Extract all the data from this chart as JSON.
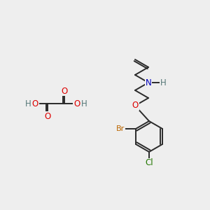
{
  "bg_color": "#eeeeee",
  "bond_color": "#2a2a2a",
  "bond_width": 1.4,
  "atom_colors": {
    "O": "#dd0000",
    "N": "#0000bb",
    "Br": "#bb6600",
    "Cl": "#227700",
    "H": "#557777",
    "C": "#2a2a2a"
  },
  "font_size": 8.5,
  "fig_width": 3.0,
  "fig_height": 3.0,
  "dpi": 100
}
